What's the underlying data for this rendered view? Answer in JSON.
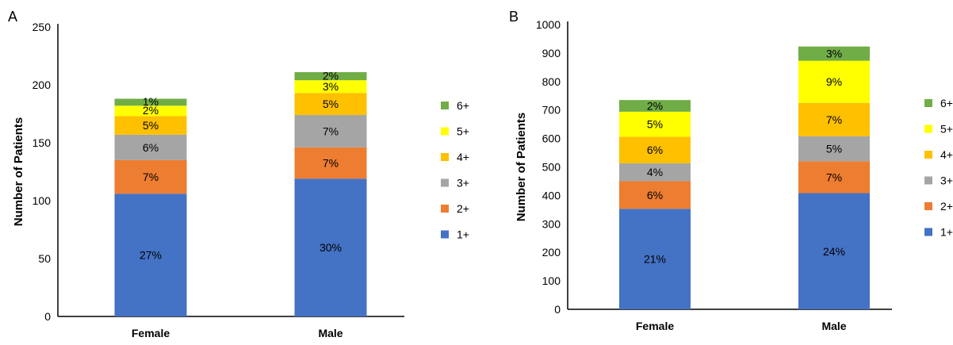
{
  "legend_order": [
    "6+",
    "5+",
    "4+",
    "3+",
    "2+",
    "1+"
  ],
  "colors": {
    "1+": "#4472c4",
    "2+": "#ed7d31",
    "3+": "#a5a5a5",
    "4+": "#ffc000",
    "5+": "#ffff00",
    "6+": "#70ad47"
  },
  "chart_data": [
    {
      "panel": "A",
      "type": "bar",
      "stacked": true,
      "categories": [
        "Female",
        "Male"
      ],
      "ylabel": "Number of Patients",
      "ylim": [
        0,
        250
      ],
      "yticks": [
        0,
        50,
        100,
        150,
        200,
        250
      ],
      "grid": false,
      "legend": "right",
      "series": [
        {
          "name": "1+",
          "values": [
            106,
            119
          ],
          "labels": [
            "27%",
            "30%"
          ]
        },
        {
          "name": "2+",
          "values": [
            29,
            27
          ],
          "labels": [
            "7%",
            "7%"
          ]
        },
        {
          "name": "3+",
          "values": [
            22,
            28
          ],
          "labels": [
            "6%",
            "7%"
          ]
        },
        {
          "name": "4+",
          "values": [
            16,
            19
          ],
          "labels": [
            "5%",
            "5%"
          ]
        },
        {
          "name": "5+",
          "values": [
            9,
            11
          ],
          "labels": [
            "2%",
            "3%"
          ]
        },
        {
          "name": "6+",
          "values": [
            6,
            7
          ],
          "labels": [
            "1%",
            "2%"
          ]
        }
      ]
    },
    {
      "panel": "B",
      "type": "bar",
      "stacked": true,
      "categories": [
        "Female",
        "Male"
      ],
      "ylabel": "Number of Patients",
      "ylim": [
        0,
        1000
      ],
      "yticks": [
        0,
        100,
        200,
        300,
        400,
        500,
        600,
        700,
        800,
        900,
        1000
      ],
      "grid": false,
      "legend": "right",
      "series": [
        {
          "name": "1+",
          "values": [
            353,
            408
          ],
          "labels": [
            "21%",
            "24%"
          ]
        },
        {
          "name": "2+",
          "values": [
            97,
            112
          ],
          "labels": [
            "6%",
            "7%"
          ]
        },
        {
          "name": "3+",
          "values": [
            63,
            88
          ],
          "labels": [
            "4%",
            "5%"
          ]
        },
        {
          "name": "4+",
          "values": [
            93,
            117
          ],
          "labels": [
            "6%",
            "7%"
          ]
        },
        {
          "name": "5+",
          "values": [
            88,
            148
          ],
          "labels": [
            "5%",
            "9%"
          ]
        },
        {
          "name": "6+",
          "values": [
            41,
            50
          ],
          "labels": [
            "2%",
            "3%"
          ]
        }
      ]
    }
  ]
}
